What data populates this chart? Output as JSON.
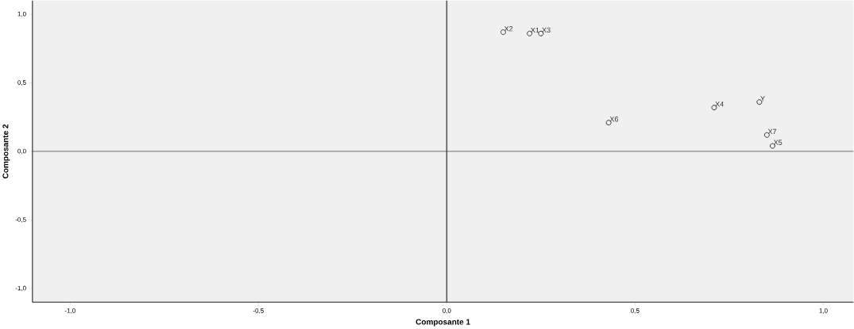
{
  "chart_data": {
    "type": "scatter",
    "xlabel": "Composante 1",
    "ylabel": "Composante 2",
    "xlim": [
      -1.1,
      1.08
    ],
    "ylim": [
      -1.1,
      1.1
    ],
    "xticks": [
      {
        "value": -1,
        "label": "-1,0"
      },
      {
        "value": -0.5,
        "label": "-0,5"
      },
      {
        "value": 0,
        "label": "0,0"
      },
      {
        "value": 0.5,
        "label": "0,5"
      },
      {
        "value": 1,
        "label": "1,0"
      }
    ],
    "yticks": [
      {
        "value": -1,
        "label": "-1,0"
      },
      {
        "value": -0.5,
        "label": "-0,5"
      },
      {
        "value": 0,
        "label": "0,0"
      },
      {
        "value": 0.5,
        "label": "0,5"
      },
      {
        "value": 1,
        "label": "1,0"
      }
    ],
    "marker": "circle",
    "grid": false,
    "legend": false,
    "ref_lines": [
      {
        "axis": "x",
        "value": 0,
        "color": "#555555"
      },
      {
        "axis": "y",
        "value": 0,
        "color": "#333333"
      }
    ],
    "series": [
      {
        "name": "X2",
        "color": "#333333",
        "x": [
          0.15
        ],
        "values": [
          0.87
        ]
      },
      {
        "name": "X1",
        "color": "#333333",
        "x": [
          0.22
        ],
        "values": [
          0.86
        ]
      },
      {
        "name": "X3",
        "color": "#333333",
        "x": [
          0.25
        ],
        "values": [
          0.86
        ]
      },
      {
        "name": "X6",
        "color": "#333333",
        "x": [
          0.43
        ],
        "values": [
          0.21
        ]
      },
      {
        "name": "X4",
        "color": "#333333",
        "x": [
          0.71
        ],
        "values": [
          0.32
        ]
      },
      {
        "name": "Y",
        "color": "#333333",
        "x": [
          0.83
        ],
        "values": [
          0.36
        ]
      },
      {
        "name": "X7",
        "color": "#333333",
        "x": [
          0.85
        ],
        "values": [
          0.12
        ]
      },
      {
        "name": "X5",
        "color": "#333333",
        "x": [
          0.865
        ],
        "values": [
          0.04
        ]
      }
    ]
  }
}
